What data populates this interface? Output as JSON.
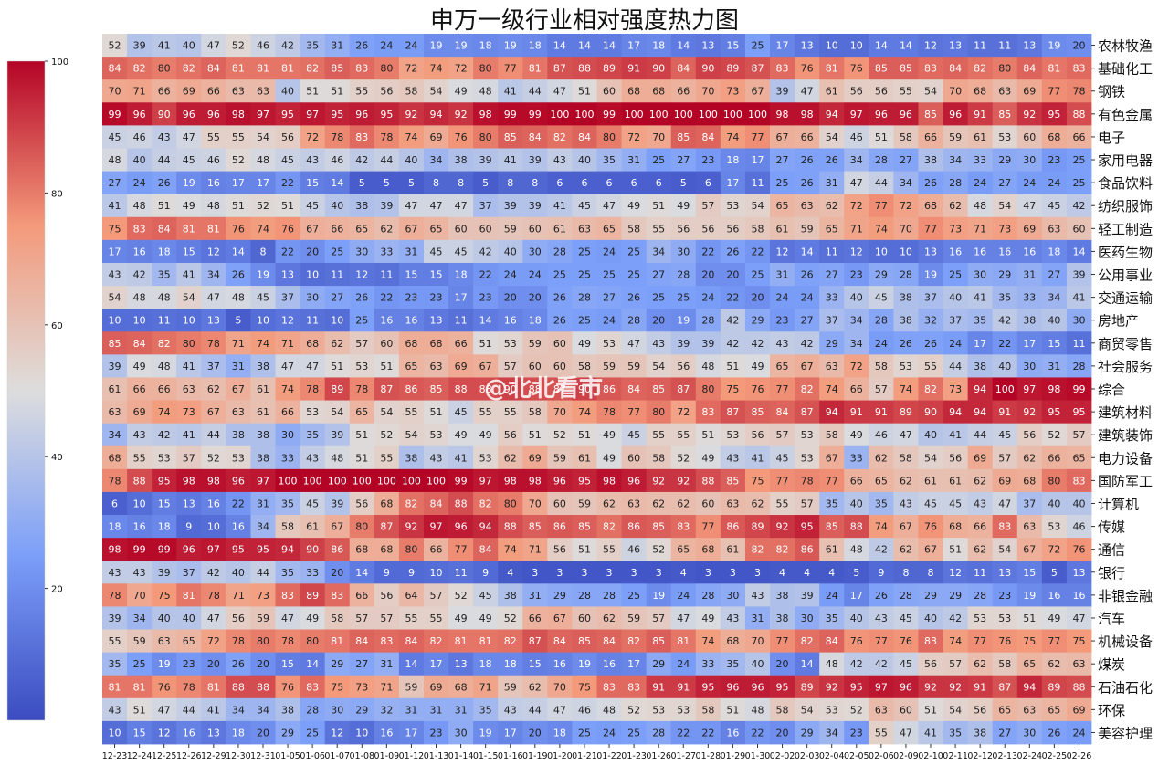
{
  "chart_data": {
    "type": "heatmap",
    "title": "申万一级行业相对强度热力图",
    "x": [
      "12-23",
      "12-24",
      "12-25",
      "12-26",
      "12-29",
      "12-30",
      "12-31",
      "01-05",
      "01-06",
      "01-07",
      "01-08",
      "01-09",
      "01-12",
      "01-13",
      "01-14",
      "01-15",
      "01-16",
      "01-19",
      "01-20",
      "01-21",
      "01-22",
      "01-23",
      "01-26",
      "01-27",
      "01-28",
      "01-29",
      "01-30",
      "02-02",
      "02-03",
      "02-04",
      "02-05",
      "02-06",
      "02-09",
      "02-10",
      "02-11",
      "02-12",
      "02-13",
      "02-24",
      "02-25",
      "02-26"
    ],
    "y": [
      "农林牧渔",
      "基础化工",
      "钢铁",
      "有色金属",
      "电子",
      "家用电器",
      "食品饮料",
      "纺织服饰",
      "轻工制造",
      "医药生物",
      "公用事业",
      "交通运输",
      "房地产",
      "商贸零售",
      "社会服务",
      "综合",
      "建筑材料",
      "建筑装饰",
      "电力设备",
      "国防军工",
      "计算机",
      "传媒",
      "通信",
      "银行",
      "非银金融",
      "汽车",
      "机械设备",
      "煤炭",
      "石油石化",
      "环保",
      "美容护理"
    ],
    "values": [
      [
        52,
        39,
        41,
        40,
        47,
        52,
        46,
        42,
        35,
        31,
        26,
        24,
        24,
        19,
        19,
        18,
        19,
        18,
        14,
        14,
        14,
        17,
        18,
        14,
        13,
        15,
        25,
        17,
        13,
        10,
        10,
        14,
        14,
        12,
        13,
        11,
        11,
        13,
        19,
        20
      ],
      [
        84,
        82,
        80,
        82,
        84,
        81,
        81,
        81,
        82,
        85,
        83,
        80,
        72,
        74,
        72,
        80,
        77,
        81,
        87,
        88,
        89,
        91,
        90,
        84,
        90,
        89,
        87,
        83,
        76,
        81,
        76,
        85,
        85,
        83,
        84,
        82,
        80,
        84,
        81,
        83
      ],
      [
        70,
        71,
        66,
        69,
        66,
        63,
        63,
        40,
        51,
        51,
        55,
        56,
        58,
        54,
        49,
        48,
        41,
        44,
        47,
        51,
        60,
        68,
        68,
        66,
        70,
        73,
        67,
        39,
        47,
        61,
        56,
        56,
        55,
        54,
        70,
        68,
        63,
        69,
        77,
        78
      ],
      [
        99,
        96,
        90,
        96,
        96,
        98,
        97,
        95,
        97,
        95,
        96,
        95,
        92,
        94,
        92,
        98,
        99,
        99,
        100,
        100,
        99,
        100,
        100,
        100,
        100,
        100,
        100,
        98,
        98,
        94,
        97,
        96,
        96,
        85,
        96,
        91,
        85,
        92,
        95,
        88
      ],
      [
        45,
        46,
        43,
        47,
        55,
        55,
        54,
        56,
        72,
        78,
        83,
        78,
        74,
        69,
        76,
        80,
        85,
        84,
        82,
        84,
        80,
        72,
        70,
        85,
        84,
        74,
        77,
        67,
        66,
        54,
        46,
        51,
        58,
        66,
        59,
        61,
        53,
        60,
        68,
        66
      ],
      [
        48,
        40,
        44,
        45,
        46,
        52,
        48,
        45,
        43,
        46,
        42,
        44,
        40,
        34,
        38,
        39,
        41,
        39,
        43,
        40,
        35,
        31,
        25,
        27,
        23,
        18,
        17,
        27,
        26,
        26,
        34,
        28,
        27,
        38,
        34,
        33,
        29,
        30,
        23,
        25
      ],
      [
        27,
        24,
        26,
        19,
        16,
        17,
        17,
        22,
        15,
        14,
        5,
        5,
        5,
        8,
        8,
        5,
        8,
        8,
        6,
        6,
        6,
        6,
        6,
        5,
        6,
        17,
        11,
        25,
        26,
        31,
        47,
        44,
        34,
        26,
        28,
        24,
        27,
        24,
        24,
        25
      ],
      [
        41,
        48,
        51,
        49,
        48,
        51,
        52,
        51,
        45,
        40,
        38,
        39,
        47,
        47,
        47,
        37,
        39,
        39,
        41,
        45,
        47,
        49,
        51,
        49,
        57,
        53,
        54,
        65,
        63,
        62,
        72,
        77,
        72,
        68,
        62,
        48,
        54,
        47,
        45,
        42
      ],
      [
        75,
        83,
        84,
        81,
        81,
        76,
        74,
        76,
        67,
        66,
        65,
        62,
        67,
        65,
        60,
        60,
        59,
        60,
        61,
        63,
        65,
        58,
        55,
        56,
        56,
        56,
        58,
        61,
        59,
        65,
        71,
        74,
        70,
        77,
        73,
        71,
        73,
        69,
        63,
        60
      ],
      [
        17,
        16,
        18,
        15,
        12,
        14,
        8,
        22,
        20,
        25,
        30,
        33,
        31,
        45,
        45,
        42,
        40,
        30,
        28,
        25,
        24,
        25,
        34,
        30,
        22,
        26,
        22,
        12,
        14,
        11,
        12,
        10,
        10,
        13,
        16,
        16,
        16,
        16,
        18,
        14
      ],
      [
        43,
        42,
        35,
        41,
        34,
        26,
        19,
        13,
        10,
        11,
        12,
        11,
        15,
        15,
        18,
        22,
        24,
        24,
        25,
        25,
        25,
        25,
        27,
        28,
        20,
        20,
        25,
        31,
        26,
        27,
        23,
        29,
        28,
        19,
        25,
        30,
        29,
        31,
        27,
        39
      ],
      [
        54,
        48,
        48,
        54,
        47,
        48,
        45,
        37,
        30,
        27,
        26,
        22,
        23,
        23,
        17,
        23,
        20,
        20,
        26,
        28,
        27,
        26,
        25,
        25,
        24,
        22,
        20,
        24,
        24,
        33,
        40,
        45,
        38,
        37,
        40,
        41,
        35,
        33,
        34,
        41
      ],
      [
        10,
        10,
        11,
        10,
        13,
        5,
        10,
        12,
        11,
        10,
        25,
        16,
        16,
        13,
        11,
        14,
        16,
        18,
        26,
        25,
        24,
        28,
        20,
        19,
        28,
        42,
        29,
        23,
        27,
        37,
        34,
        28,
        38,
        32,
        37,
        35,
        42,
        38,
        40,
        30
      ],
      [
        85,
        84,
        82,
        80,
        78,
        71,
        74,
        71,
        68,
        62,
        57,
        60,
        68,
        68,
        66,
        51,
        53,
        59,
        60,
        49,
        53,
        47,
        43,
        39,
        39,
        42,
        42,
        43,
        42,
        29,
        34,
        24,
        26,
        26,
        24,
        17,
        22,
        17,
        15,
        11
      ],
      [
        39,
        49,
        48,
        41,
        37,
        31,
        38,
        47,
        47,
        51,
        53,
        51,
        65,
        63,
        69,
        67,
        57,
        60,
        60,
        58,
        59,
        59,
        54,
        56,
        48,
        51,
        49,
        65,
        67,
        63,
        72,
        58,
        53,
        55,
        44,
        38,
        40,
        30,
        31,
        28
      ],
      [
        61,
        66,
        66,
        63,
        62,
        67,
        61,
        74,
        78,
        89,
        78,
        87,
        86,
        85,
        88,
        88,
        90,
        88,
        87,
        90,
        86,
        84,
        85,
        87,
        80,
        75,
        76,
        77,
        82,
        74,
        66,
        57,
        74,
        82,
        73,
        94,
        100,
        97,
        98,
        99
      ],
      [
        63,
        69,
        74,
        73,
        67,
        63,
        61,
        66,
        53,
        54,
        65,
        54,
        55,
        51,
        45,
        55,
        55,
        58,
        70,
        74,
        78,
        77,
        80,
        72,
        83,
        87,
        85,
        84,
        87,
        94,
        91,
        91,
        89,
        90,
        94,
        94,
        91,
        92,
        95,
        95
      ],
      [
        34,
        43,
        42,
        41,
        44,
        38,
        38,
        30,
        35,
        39,
        51,
        52,
        54,
        53,
        49,
        49,
        56,
        51,
        52,
        51,
        49,
        45,
        55,
        55,
        51,
        53,
        56,
        57,
        53,
        58,
        49,
        46,
        47,
        40,
        41,
        44,
        45,
        56,
        52,
        57
      ],
      [
        68,
        55,
        53,
        57,
        52,
        53,
        38,
        33,
        43,
        48,
        51,
        55,
        38,
        43,
        41,
        53,
        62,
        69,
        59,
        61,
        49,
        60,
        58,
        52,
        49,
        43,
        41,
        45,
        53,
        67,
        33,
        62,
        58,
        54,
        56,
        69,
        57,
        62,
        66,
        65
      ],
      [
        78,
        88,
        95,
        98,
        98,
        96,
        97,
        100,
        100,
        100,
        100,
        100,
        100,
        100,
        99,
        97,
        98,
        98,
        96,
        95,
        98,
        96,
        92,
        92,
        88,
        85,
        75,
        77,
        78,
        77,
        66,
        65,
        62,
        61,
        61,
        62,
        69,
        68,
        80,
        83
      ],
      [
        6,
        10,
        15,
        13,
        16,
        22,
        31,
        35,
        45,
        39,
        56,
        68,
        82,
        84,
        88,
        82,
        80,
        70,
        60,
        59,
        62,
        63,
        62,
        62,
        60,
        63,
        62,
        55,
        57,
        35,
        40,
        35,
        43,
        45,
        45,
        43,
        47,
        37,
        40,
        40
      ],
      [
        18,
        16,
        18,
        9,
        10,
        16,
        34,
        58,
        61,
        67,
        80,
        87,
        92,
        97,
        96,
        94,
        88,
        85,
        86,
        85,
        82,
        86,
        85,
        83,
        77,
        86,
        89,
        92,
        95,
        85,
        88,
        74,
        67,
        76,
        68,
        66,
        83,
        63,
        53,
        46
      ],
      [
        98,
        99,
        99,
        96,
        97,
        95,
        95,
        94,
        90,
        86,
        68,
        68,
        80,
        66,
        77,
        84,
        74,
        71,
        56,
        51,
        55,
        46,
        52,
        65,
        68,
        61,
        82,
        82,
        86,
        61,
        48,
        42,
        62,
        67,
        51,
        62,
        54,
        67,
        72,
        76
      ],
      [
        43,
        43,
        39,
        37,
        42,
        40,
        44,
        35,
        33,
        20,
        14,
        9,
        9,
        10,
        11,
        9,
        4,
        3,
        3,
        3,
        3,
        3,
        3,
        4,
        3,
        3,
        3,
        4,
        4,
        4,
        5,
        9,
        8,
        8,
        12,
        11,
        13,
        15,
        5,
        13
      ],
      [
        78,
        70,
        75,
        81,
        78,
        71,
        73,
        83,
        89,
        83,
        66,
        56,
        64,
        57,
        52,
        45,
        38,
        31,
        29,
        28,
        28,
        25,
        19,
        24,
        28,
        30,
        43,
        38,
        39,
        24,
        17,
        26,
        28,
        29,
        29,
        28,
        23,
        19,
        16,
        16
      ],
      [
        39,
        34,
        40,
        40,
        47,
        56,
        59,
        47,
        49,
        58,
        57,
        57,
        55,
        55,
        49,
        49,
        52,
        66,
        67,
        60,
        62,
        59,
        57,
        47,
        49,
        43,
        31,
        38,
        30,
        35,
        40,
        43,
        45,
        40,
        42,
        53,
        53,
        51,
        49,
        47
      ],
      [
        55,
        59,
        63,
        65,
        72,
        78,
        80,
        78,
        80,
        81,
        84,
        83,
        84,
        82,
        81,
        81,
        82,
        87,
        84,
        85,
        84,
        82,
        85,
        81,
        74,
        68,
        70,
        77,
        82,
        84,
        76,
        77,
        76,
        83,
        74,
        77,
        76,
        75,
        77,
        75
      ],
      [
        35,
        25,
        19,
        23,
        20,
        26,
        20,
        15,
        14,
        29,
        27,
        31,
        14,
        17,
        13,
        18,
        18,
        15,
        16,
        19,
        16,
        17,
        29,
        24,
        33,
        35,
        40,
        20,
        14,
        48,
        42,
        42,
        45,
        56,
        57,
        62,
        58,
        65,
        62,
        63
      ],
      [
        81,
        81,
        76,
        78,
        81,
        88,
        88,
        76,
        83,
        75,
        73,
        71,
        59,
        69,
        68,
        71,
        59,
        62,
        70,
        75,
        83,
        83,
        91,
        91,
        95,
        96,
        96,
        95,
        89,
        92,
        95,
        97,
        96,
        92,
        92,
        91,
        87,
        94,
        89,
        88
      ],
      [
        43,
        51,
        47,
        44,
        41,
        34,
        34,
        38,
        28,
        30,
        29,
        32,
        31,
        31,
        31,
        35,
        43,
        44,
        47,
        46,
        48,
        52,
        53,
        53,
        58,
        51,
        48,
        58,
        54,
        53,
        52,
        63,
        60,
        51,
        54,
        56,
        65,
        63,
        65,
        69
      ],
      [
        10,
        15,
        12,
        16,
        13,
        18,
        20,
        29,
        25,
        12,
        10,
        16,
        17,
        23,
        30,
        19,
        17,
        20,
        18,
        25,
        24,
        25,
        28,
        22,
        22,
        16,
        22,
        20,
        29,
        34,
        23,
        55,
        47,
        41,
        35,
        38,
        27,
        30,
        26,
        24
      ]
    ],
    "colorbar": {
      "min": 0,
      "max": 100,
      "ticks": [
        100,
        80,
        60,
        40,
        20
      ],
      "colormap": "coolwarm"
    },
    "watermark": "@北北看市"
  }
}
